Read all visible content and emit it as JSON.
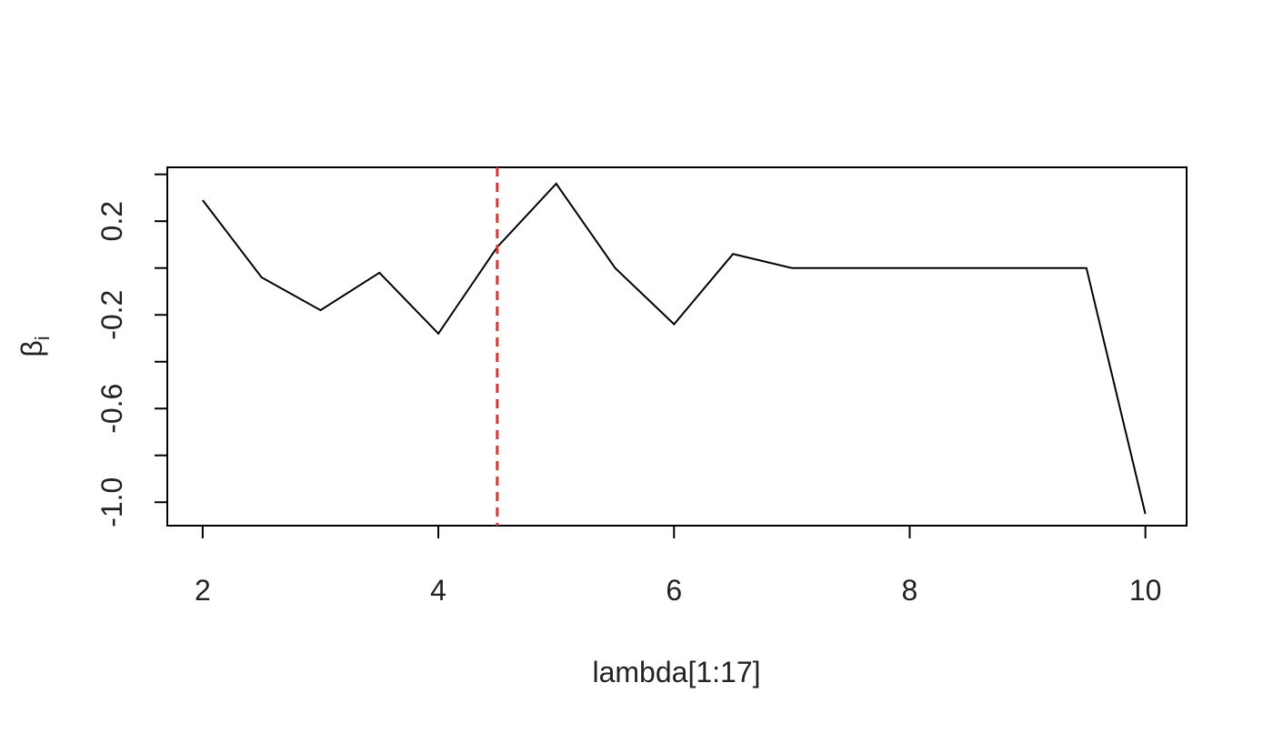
{
  "chart_data": {
    "type": "line",
    "title": "",
    "xlabel": "lambda[1:17]",
    "ylabel": {
      "base": "β",
      "subscript": "i"
    },
    "xlim": [
      1.7,
      10.35
    ],
    "ylim": [
      -1.1,
      0.43
    ],
    "x_ticks": [
      2,
      4,
      6,
      8,
      10
    ],
    "x_tick_labels": [
      "2",
      "4",
      "6",
      "8",
      "10"
    ],
    "y_ticks": [
      -1.0,
      -0.8,
      -0.6,
      -0.4,
      -0.2,
      0.0,
      0.2,
      0.4
    ],
    "y_tick_labels": [
      "-1.0",
      "",
      "-0.6",
      "",
      "-0.2",
      "",
      "0.2",
      ""
    ],
    "grid": false,
    "series": [
      {
        "color": "#000000",
        "x": [
          2,
          2.5,
          3,
          3.5,
          4,
          4.5,
          5,
          5.5,
          6,
          6.5,
          7,
          7.5,
          8,
          8.5,
          9,
          9.5,
          10
        ],
        "y": [
          0.29,
          -0.04,
          -0.18,
          -0.02,
          -0.28,
          0.09,
          0.36,
          0.0,
          -0.24,
          0.06,
          0.0,
          0.0,
          0.0,
          0.0,
          0.0,
          0.0,
          -1.05
        ]
      }
    ],
    "vline": {
      "x": 4.5,
      "color": "#e03030",
      "style": "dashed"
    }
  }
}
